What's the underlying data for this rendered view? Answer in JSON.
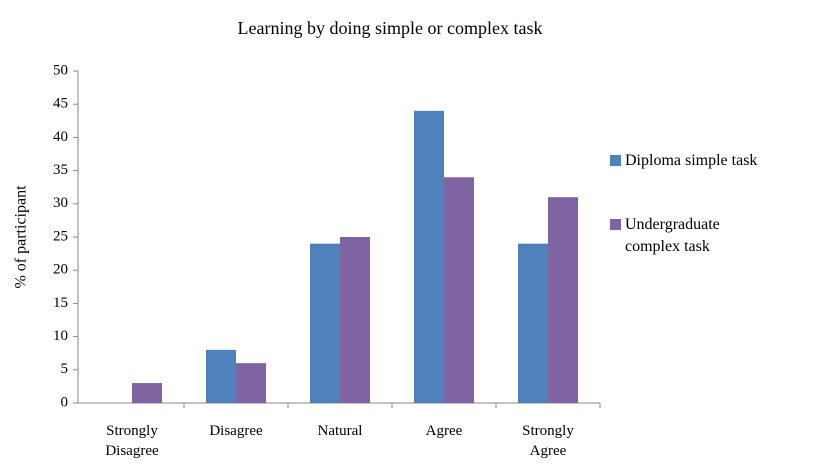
{
  "chart_data": {
    "type": "bar",
    "title": "Learning by doing simple or complex task",
    "y_label": "% of participant",
    "categories": [
      "Strongly Disagree",
      "Disagree",
      "Natural",
      "Agree",
      "Strongly Agree"
    ],
    "series": [
      {
        "name": "Diploma simple task",
        "color": "#4f81bd",
        "values": [
          0,
          8,
          24,
          44,
          24
        ]
      },
      {
        "name": "Undergraduate complex task",
        "color": "#8064a2",
        "values": [
          3,
          6,
          25,
          34,
          31
        ]
      }
    ],
    "ylim": [
      0,
      50
    ],
    "yticks": [
      0,
      5,
      10,
      15,
      20,
      25,
      30,
      35,
      40,
      45,
      50
    ],
    "grid": false,
    "legend": "right"
  }
}
